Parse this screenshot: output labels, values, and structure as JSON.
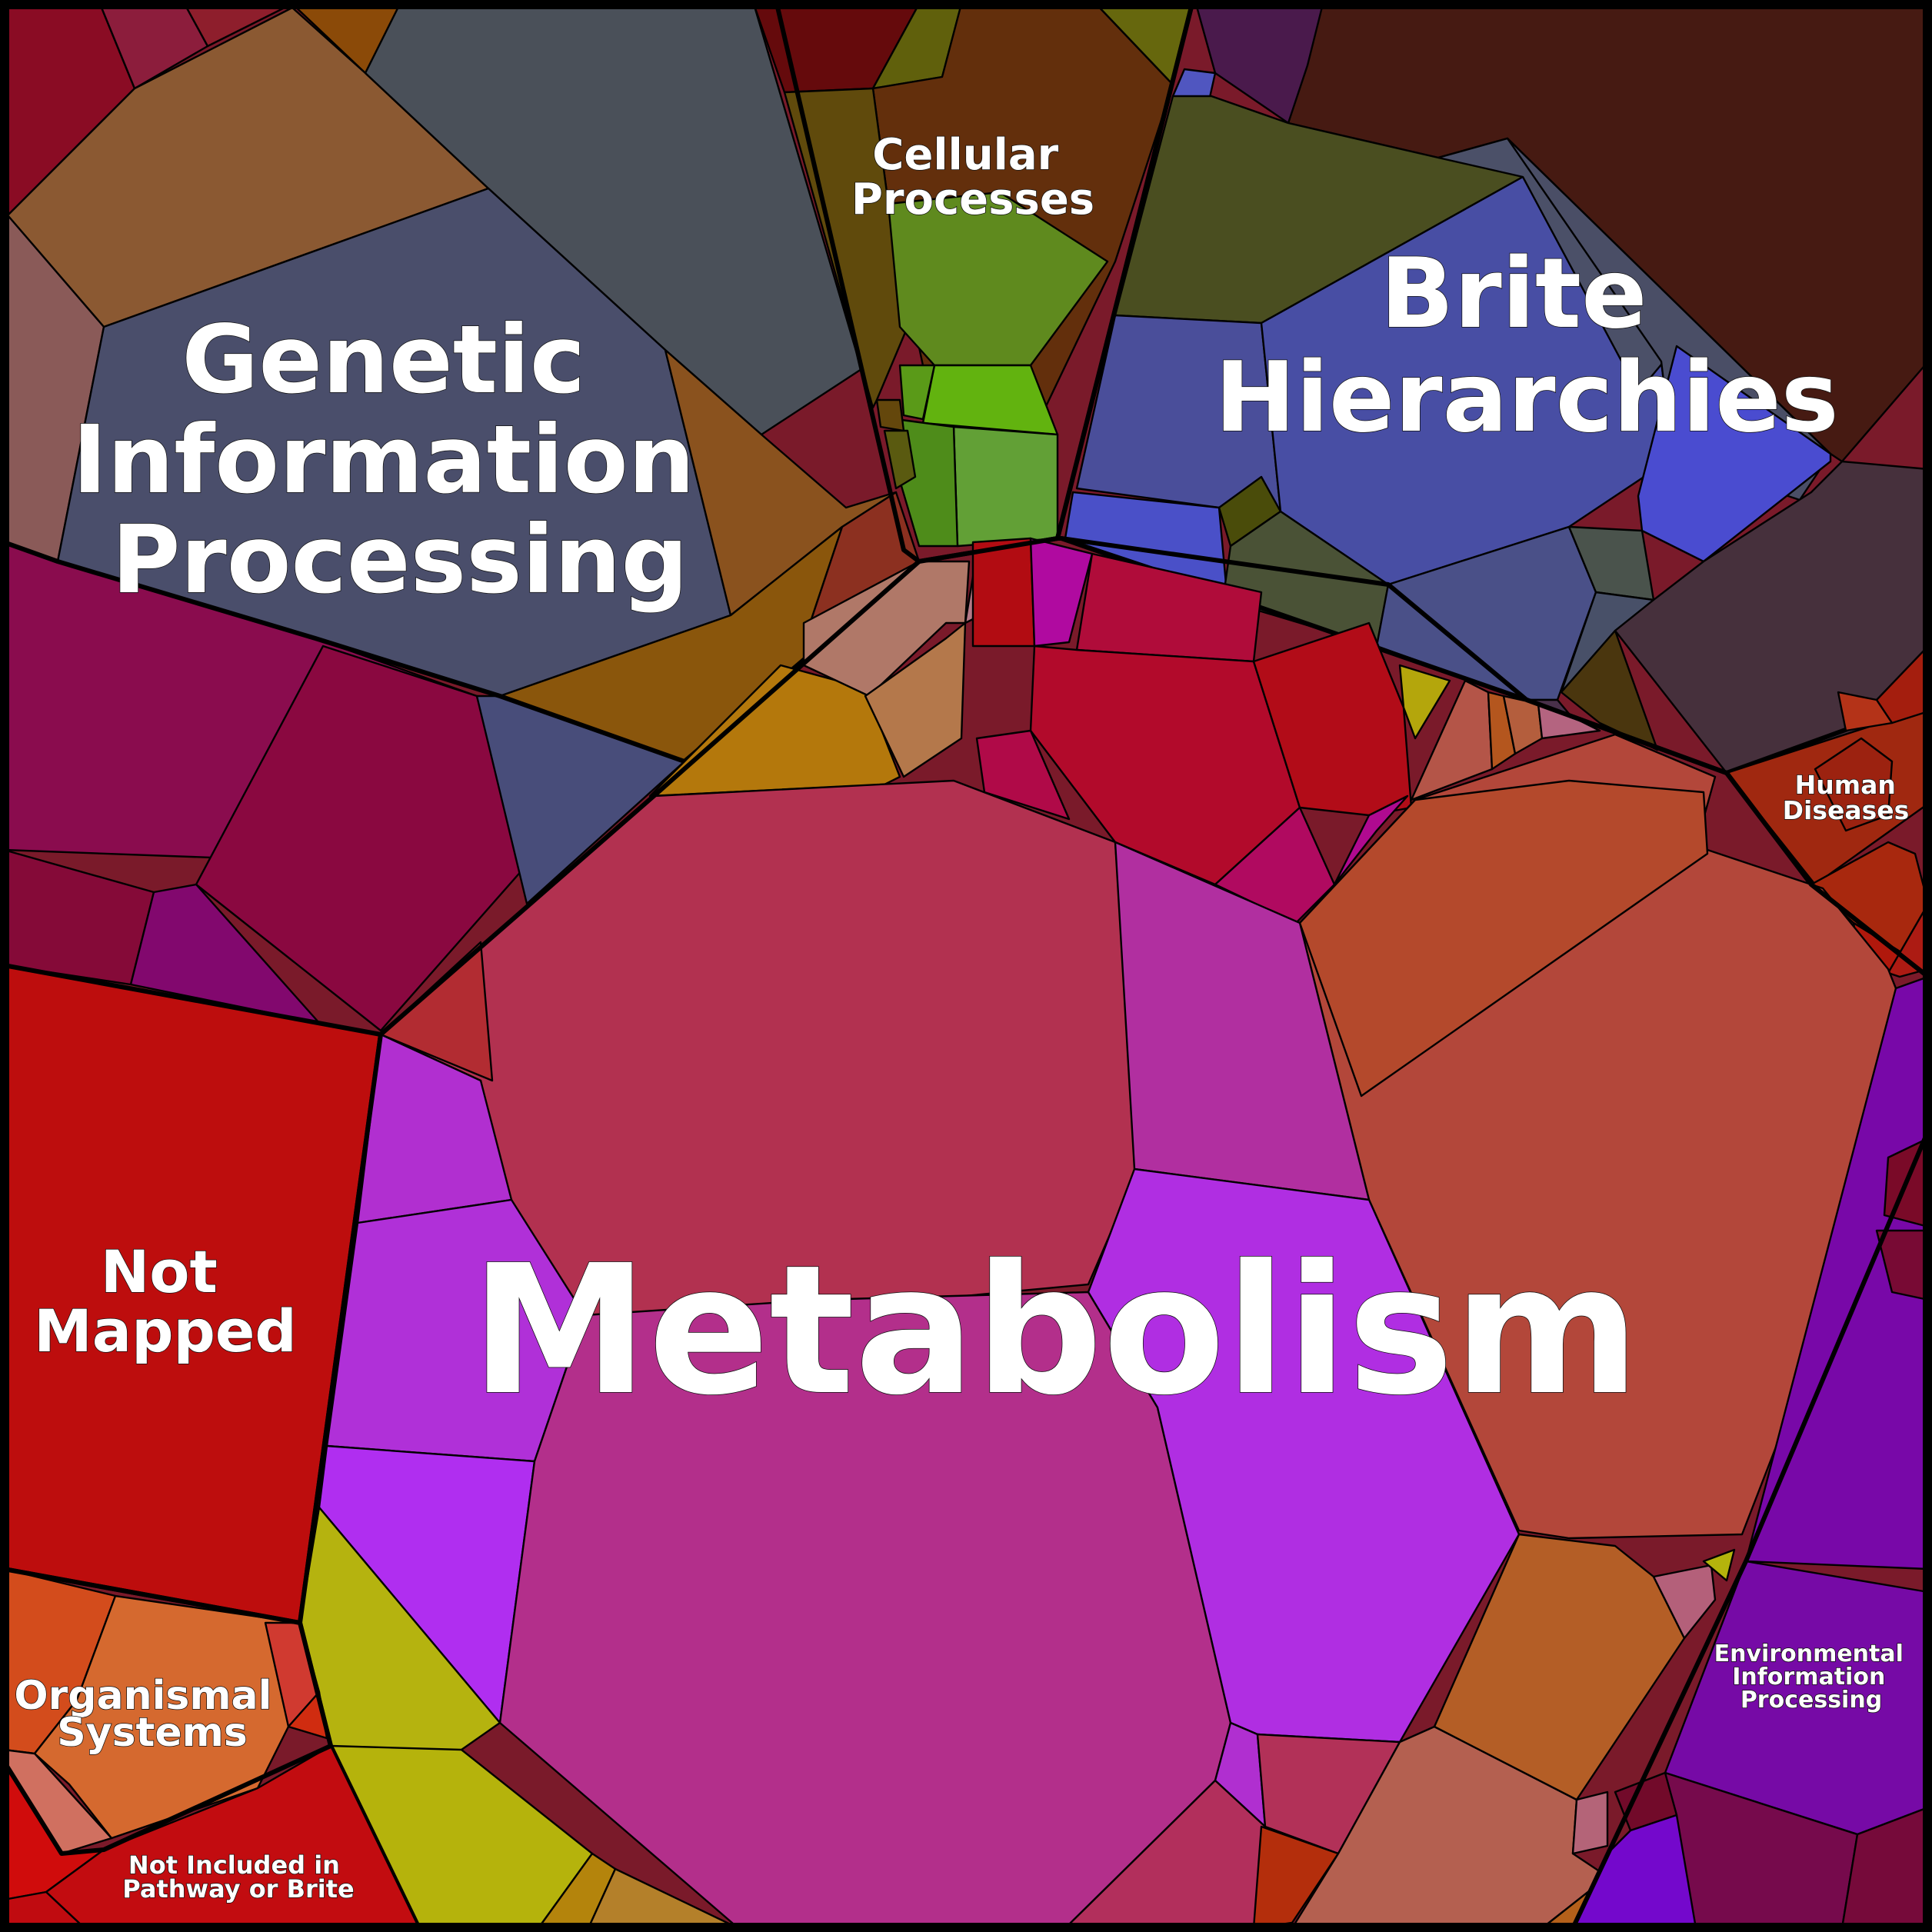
{
  "labels": {
    "genetic": [
      "Genetic",
      "Information",
      "Processing"
    ],
    "cellular": [
      "Cellular",
      "Processes"
    ],
    "brite": [
      "Brite",
      "Hierarchies"
    ],
    "human": [
      "Human",
      "Diseases"
    ],
    "not_mapped": [
      "Not",
      "Mapped"
    ],
    "metabolism": [
      "Metabolism"
    ],
    "organismal": [
      "Organismal",
      "Systems"
    ],
    "environmental": [
      "Environmental",
      "Information",
      "Processing"
    ],
    "not_included": [
      "Not Included in",
      "Pathway or Brite"
    ]
  },
  "colors": {
    "metabolism_magenta": "#b32f8b",
    "metabolism_purple": "#b12fe0",
    "metabolism_rose": "#b23150",
    "metabolism_brown": "#b3473a",
    "genetic_slate": "#4a5066",
    "brite_navy": "#4a4ea0",
    "brite_maroon": "#461a12",
    "cellular_green": "#5f8a1e",
    "not_mapped_red": "#bd0d0d",
    "environmental_violet": "#7808a8",
    "human_rust": "#a02810",
    "organismal_orange": "#d5692f",
    "olive_yellow": "#b5b30f"
  }
}
